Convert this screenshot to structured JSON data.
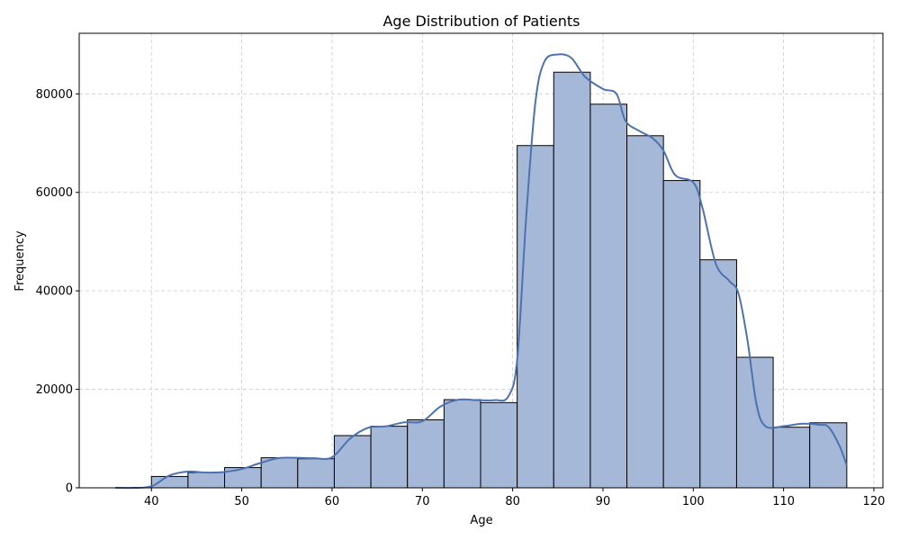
{
  "chart_data": {
    "type": "bar",
    "title": "Age Distribution of Patients",
    "xlabel": "Age",
    "ylabel": "Frequency",
    "xlim": [
      32,
      121
    ],
    "ylim": [
      0,
      92300
    ],
    "grid": true,
    "x_ticks": [
      40,
      50,
      60,
      70,
      80,
      90,
      100,
      110,
      120
    ],
    "y_ticks": [
      0,
      20000,
      40000,
      60000,
      80000
    ],
    "bins": [
      {
        "start": 40.0,
        "end": 44.05,
        "value": 2300
      },
      {
        "start": 44.05,
        "end": 48.1,
        "value": 3100
      },
      {
        "start": 48.1,
        "end": 52.15,
        "value": 4100
      },
      {
        "start": 52.15,
        "end": 56.2,
        "value": 6100
      },
      {
        "start": 56.2,
        "end": 60.25,
        "value": 5900
      },
      {
        "start": 60.25,
        "end": 64.3,
        "value": 10600
      },
      {
        "start": 64.3,
        "end": 68.35,
        "value": 12500
      },
      {
        "start": 68.35,
        "end": 72.4,
        "value": 13800
      },
      {
        "start": 72.4,
        "end": 76.45,
        "value": 17900
      },
      {
        "start": 76.45,
        "end": 80.5,
        "value": 17300
      },
      {
        "start": 80.5,
        "end": 84.55,
        "value": 69500
      },
      {
        "start": 84.55,
        "end": 88.6,
        "value": 84400
      },
      {
        "start": 88.6,
        "end": 92.65,
        "value": 77900
      },
      {
        "start": 92.65,
        "end": 96.7,
        "value": 71500
      },
      {
        "start": 96.7,
        "end": 100.75,
        "value": 62400
      },
      {
        "start": 100.75,
        "end": 104.8,
        "value": 46300
      },
      {
        "start": 104.8,
        "end": 108.85,
        "value": 26500
      },
      {
        "start": 108.85,
        "end": 112.9,
        "value": 12300
      },
      {
        "start": 112.9,
        "end": 117.0,
        "value": 13200
      }
    ],
    "kde": [
      [
        36,
        0
      ],
      [
        38,
        0
      ],
      [
        40,
        300
      ],
      [
        42,
        2500
      ],
      [
        44,
        3300
      ],
      [
        46,
        3100
      ],
      [
        48,
        3200
      ],
      [
        50,
        3800
      ],
      [
        52,
        5000
      ],
      [
        54,
        6000
      ],
      [
        56,
        6100
      ],
      [
        58,
        6000
      ],
      [
        60,
        6200
      ],
      [
        62,
        10000
      ],
      [
        64,
        12200
      ],
      [
        66,
        12500
      ],
      [
        68,
        13300
      ],
      [
        70,
        13500
      ],
      [
        72,
        16500
      ],
      [
        74,
        17900
      ],
      [
        76,
        17800
      ],
      [
        78,
        17800
      ],
      [
        79.5,
        18500
      ],
      [
        80.5,
        26000
      ],
      [
        81.5,
        55000
      ],
      [
        82.5,
        78000
      ],
      [
        83.5,
        86500
      ],
      [
        85,
        88000
      ],
      [
        86.5,
        87300
      ],
      [
        88,
        83500
      ],
      [
        90,
        81000
      ],
      [
        91.5,
        80000
      ],
      [
        92.5,
        74500
      ],
      [
        94,
        72500
      ],
      [
        95.5,
        71000
      ],
      [
        96.7,
        68500
      ],
      [
        98,
        63500
      ],
      [
        100,
        62000
      ],
      [
        101,
        57000
      ],
      [
        102.5,
        45500
      ],
      [
        104,
        42000
      ],
      [
        105,
        39500
      ],
      [
        106,
        30000
      ],
      [
        107,
        17000
      ],
      [
        108,
        12500
      ],
      [
        110,
        12500
      ],
      [
        112,
        13000
      ],
      [
        114,
        12800
      ],
      [
        115,
        12300
      ],
      [
        116.2,
        8500
      ],
      [
        117,
        4500
      ]
    ],
    "colors": {
      "bar_fill": "#a6b8d8",
      "bar_edge": "#000000",
      "kde_line": "#4c72b0",
      "grid": "#cccccc"
    }
  }
}
